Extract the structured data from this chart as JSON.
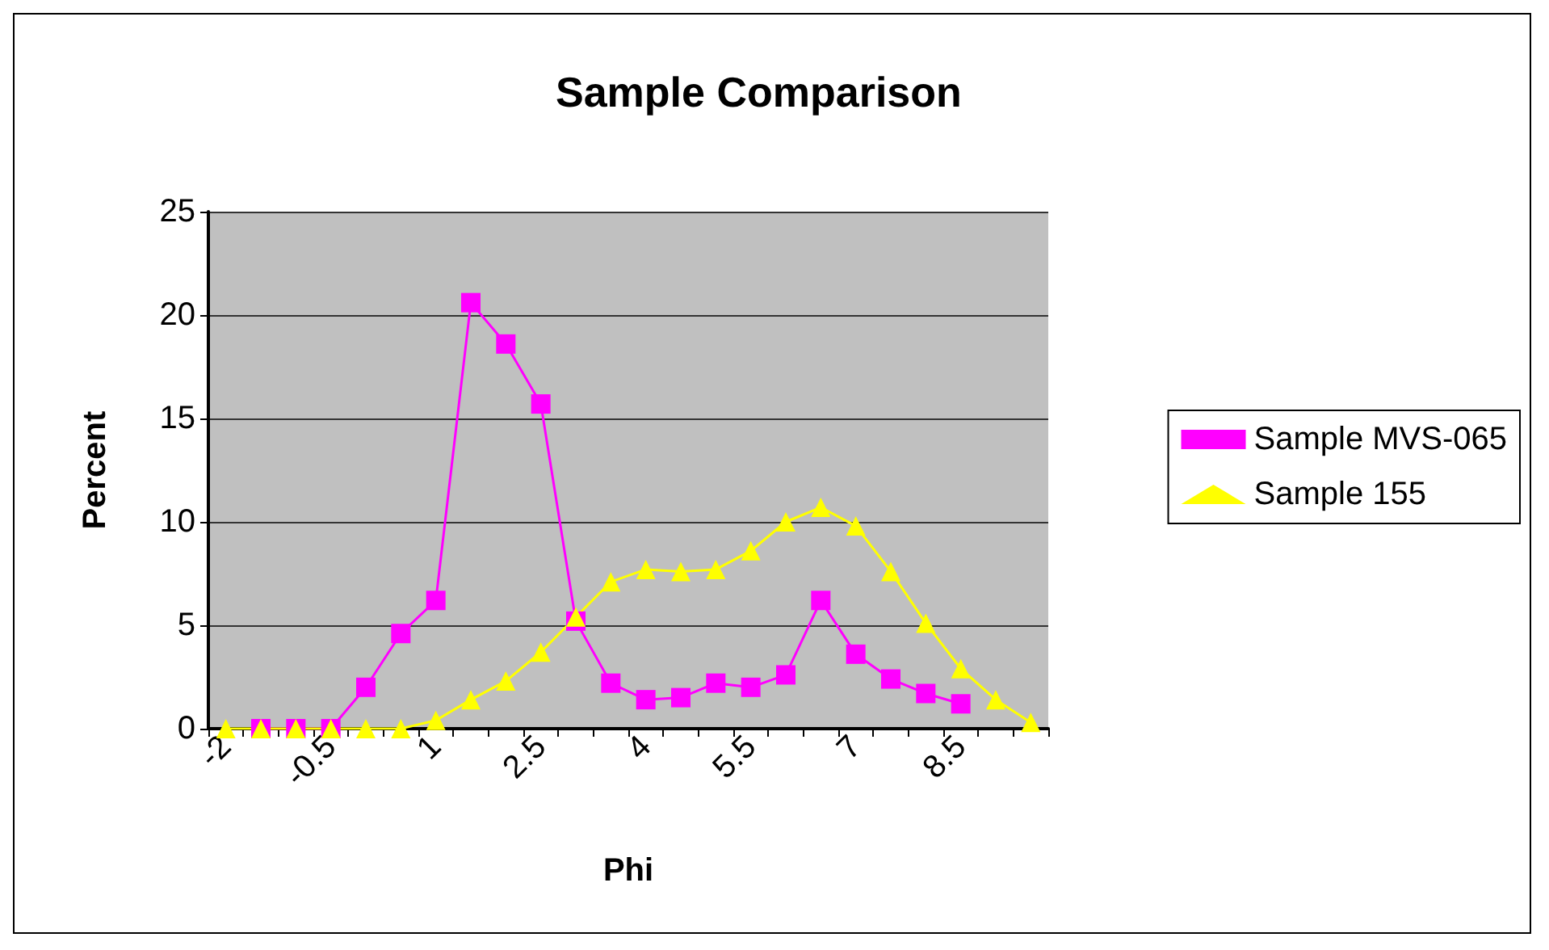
{
  "chart_data": {
    "type": "line",
    "title": "Sample Comparison",
    "xlabel": "Phi",
    "ylabel": "Percent",
    "categories": [
      "-2",
      null,
      null,
      "-0.5",
      null,
      null,
      "1",
      null,
      null,
      "2.5",
      null,
      null,
      "4",
      null,
      null,
      "5.5",
      null,
      null,
      "7",
      null,
      null,
      "8.5",
      null,
      null
    ],
    "series": [
      {
        "name": "Sample MVS-065",
        "color": "#ff00ff",
        "marker": "square",
        "values": [
          null,
          0,
          0,
          0,
          2.0,
          4.6,
          6.2,
          20.6,
          18.6,
          15.7,
          5.2,
          2.2,
          1.4,
          1.5,
          2.2,
          2.0,
          2.6,
          6.2,
          3.6,
          2.4,
          1.7,
          1.2,
          null,
          null
        ]
      },
      {
        "name": "Sample 155",
        "color": "#ffff00",
        "marker": "triangle",
        "values": [
          0,
          0,
          0,
          0,
          0,
          0,
          0.4,
          1.4,
          2.3,
          3.7,
          5.4,
          7.1,
          7.7,
          7.6,
          7.7,
          8.6,
          10.0,
          10.7,
          9.8,
          7.6,
          5.1,
          2.9,
          1.4,
          0.3
        ]
      }
    ],
    "ylim": [
      0,
      25
    ],
    "yticks": [
      0,
      5,
      10,
      15,
      20,
      25
    ],
    "grid": "y",
    "legend": "right"
  }
}
